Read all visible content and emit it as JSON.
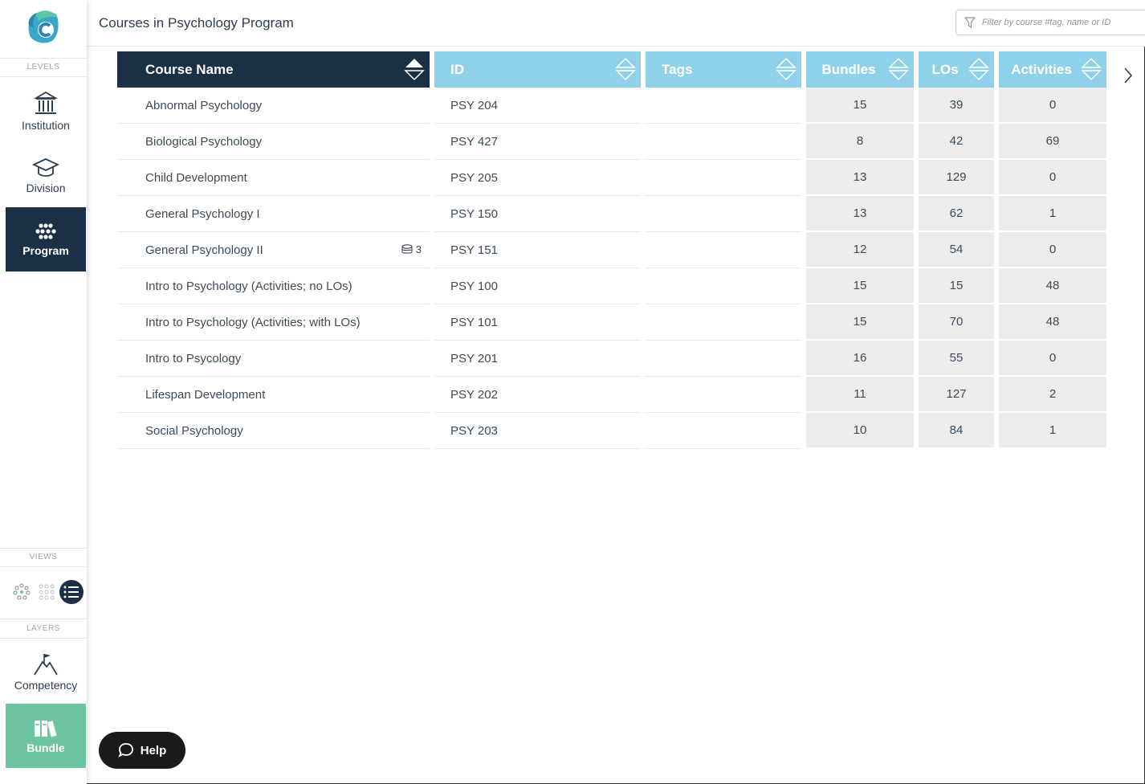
{
  "sidebar": {
    "levels_label": "LEVELS",
    "levels": [
      {
        "label": "Institution",
        "icon": "institution-icon"
      },
      {
        "label": "Division",
        "icon": "graduation-cap-icon"
      },
      {
        "label": "Program",
        "icon": "dots-grid-icon",
        "active": true
      }
    ],
    "views_label": "VIEWS",
    "layers_label": "LAYERS",
    "layers": [
      {
        "label": "Competency",
        "icon": "mountain-flag-icon"
      },
      {
        "label": "Bundle",
        "icon": "books-icon",
        "active": true
      }
    ],
    "colors": {
      "active_dark": "#1b2f47",
      "bundle_green": "#6cc5a0"
    }
  },
  "header": {
    "title": "Courses in Psychology Program",
    "filter_placeholder": "Filter by course #tag, name or ID"
  },
  "table": {
    "columns": [
      "Course Name",
      "ID",
      "Tags",
      "Bundles",
      "LOs",
      "Activities"
    ],
    "rows": [
      {
        "name": "Abnormal Psychology",
        "id": "PSY 204",
        "tags": "",
        "bundles": "15",
        "los": "39",
        "activities": "0"
      },
      {
        "name": "Biological Psychology",
        "id": "PSY 427",
        "tags": "",
        "bundles": "8",
        "los": "42",
        "activities": "69"
      },
      {
        "name": "Child Development",
        "id": "PSY 205",
        "tags": "",
        "bundles": "13",
        "los": "129",
        "activities": "0"
      },
      {
        "name": "General Psychology I",
        "id": "PSY 150",
        "tags": "",
        "bundles": "13",
        "los": "62",
        "activities": "1"
      },
      {
        "name": "General Psychology II",
        "id": "PSY 151",
        "tags": "",
        "bundles": "12",
        "los": "54",
        "activities": "0",
        "badge": "3"
      },
      {
        "name": "Intro to Psychology (Activities; no LOs)",
        "id": "PSY 100",
        "tags": "",
        "bundles": "15",
        "los": "15",
        "activities": "48"
      },
      {
        "name": "Intro to Psychology (Activities; with LOs)",
        "id": "PSY 101",
        "tags": "",
        "bundles": "15",
        "los": "70",
        "activities": "48"
      },
      {
        "name": "Intro to Psycology",
        "id": "PSY 201",
        "tags": "",
        "bundles": "16",
        "los": "55",
        "activities": "0"
      },
      {
        "name": "Lifespan Development",
        "id": "PSY 202",
        "tags": "",
        "bundles": "11",
        "los": "127",
        "activities": "2"
      },
      {
        "name": "Social Psychology",
        "id": "PSY 203",
        "tags": "",
        "bundles": "10",
        "los": "84",
        "activities": "1"
      }
    ],
    "colors": {
      "header_dark": "#1b2f47",
      "header_light": "#8fd1e8",
      "num_cell": "#ececec"
    }
  },
  "help": {
    "label": "Help"
  }
}
